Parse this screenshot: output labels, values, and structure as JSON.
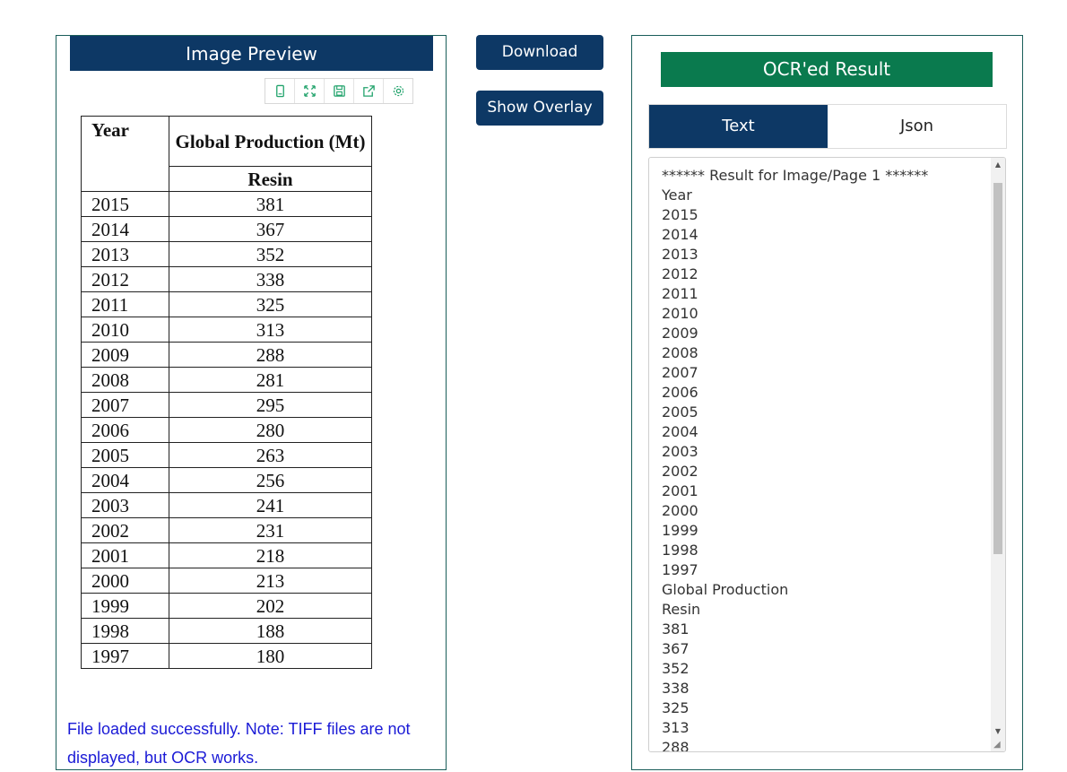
{
  "preview": {
    "title": "Image Preview",
    "toolbar": [
      "mobile-icon",
      "expand-icon",
      "save-icon",
      "share-icon",
      "settings-icon"
    ],
    "table": {
      "header_year": "Year",
      "header_production": "Global Production (Mt)",
      "header_resin": "Resin",
      "rows": [
        {
          "year": "2015",
          "value": "381"
        },
        {
          "year": "2014",
          "value": "367"
        },
        {
          "year": "2013",
          "value": "352"
        },
        {
          "year": "2012",
          "value": "338"
        },
        {
          "year": "2011",
          "value": "325"
        },
        {
          "year": "2010",
          "value": "313"
        },
        {
          "year": "2009",
          "value": "288"
        },
        {
          "year": "2008",
          "value": "281"
        },
        {
          "year": "2007",
          "value": "295"
        },
        {
          "year": "2006",
          "value": "280"
        },
        {
          "year": "2005",
          "value": "263"
        },
        {
          "year": "2004",
          "value": "256"
        },
        {
          "year": "2003",
          "value": "241"
        },
        {
          "year": "2002",
          "value": "231"
        },
        {
          "year": "2001",
          "value": "218"
        },
        {
          "year": "2000",
          "value": "213"
        },
        {
          "year": "1999",
          "value": "202"
        },
        {
          "year": "1998",
          "value": "188"
        },
        {
          "year": "1997",
          "value": "180"
        }
      ]
    },
    "status": "File loaded successfully. Note: TIFF files are not displayed, but OCR works."
  },
  "actions": {
    "download_label": "Download",
    "overlay_label": "Show Overlay"
  },
  "result": {
    "title": "OCR'ed Result",
    "tabs": [
      {
        "label": "Text",
        "active": true
      },
      {
        "label": "Json",
        "active": false
      }
    ],
    "text": "****** Result for Image/Page 1 ******\nYear\n2015\n2014\n2013\n2012\n2011\n2010\n2009\n2008\n2007\n2006\n2005\n2004\n2003\n2002\n2001\n2000\n1999\n1998\n1997\nGlobal Production\nResin\n381\n367\n352\n338\n325\n313\n288"
  },
  "colors": {
    "navy": "#0d3865",
    "green": "#0a7a4e",
    "link_blue": "#1a1ad6"
  }
}
